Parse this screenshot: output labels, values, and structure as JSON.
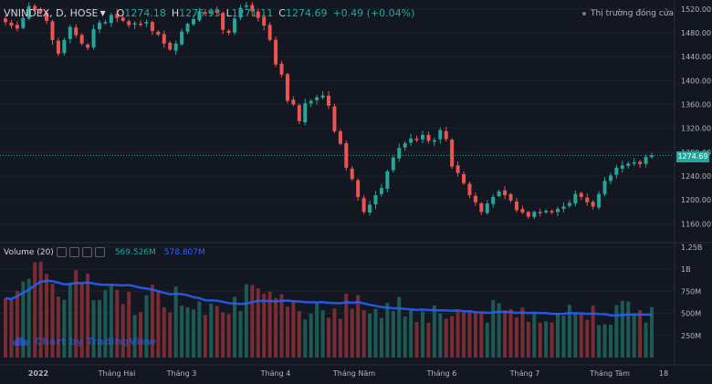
{
  "header": {
    "symbol": "VNINDEX, D, HOSE",
    "open_label": "O",
    "open": "1274.18",
    "high_label": "H",
    "high": "1275.93",
    "low_label": "L",
    "low": "1271.11",
    "close_label": "C",
    "close": "1274.69",
    "change": "+0.49 (+0.04%)"
  },
  "status": "Thị trường đóng cửa",
  "volume_header": {
    "label": "Volume (20)",
    "value1": "569.526M",
    "value2": "578.807M"
  },
  "watermark": "Chart by TradingView",
  "last_price_tag": "1274.69",
  "colors": {
    "up": "#26a69a",
    "down": "#ef5350",
    "ma": "#2962ff",
    "background": "#131722"
  },
  "chart_data": [
    {
      "type": "candlestick",
      "price_axis_ticks": [
        "1520.00",
        "1480.00",
        "1440.00",
        "1400.00",
        "1360.00",
        "1320.00",
        "1280.00",
        "1240.00",
        "1200.00",
        "1160.00"
      ],
      "ylim": [
        1130,
        1535
      ],
      "last_price": 1274.69,
      "x_ticks": [
        "2022",
        "Tháng Hai",
        "Tháng 3",
        "Tháng 4",
        "Tháng Năm",
        "Tháng 6",
        "Tháng 7",
        "Tháng Tám",
        "18"
      ],
      "series_close": [
        1498,
        1492,
        1487,
        1505,
        1525,
        1518,
        1515,
        1500,
        1468,
        1445,
        1468,
        1490,
        1476,
        1462,
        1455,
        1486,
        1497,
        1498,
        1510,
        1505,
        1500,
        1493,
        1496,
        1495,
        1498,
        1483,
        1477,
        1462,
        1452,
        1462,
        1482,
        1495,
        1503,
        1516,
        1513,
        1516,
        1514,
        1485,
        1480,
        1504,
        1522,
        1526,
        1516,
        1505,
        1492,
        1468,
        1427,
        1410,
        1366,
        1360,
        1332,
        1362,
        1366,
        1372,
        1375,
        1358,
        1315,
        1294,
        1254,
        1235,
        1205,
        1180,
        1192,
        1208,
        1220,
        1248,
        1271,
        1287,
        1295,
        1303,
        1302,
        1309,
        1299,
        1300,
        1317,
        1302,
        1256,
        1245,
        1228,
        1208,
        1196,
        1180,
        1194,
        1205,
        1214,
        1208,
        1199,
        1183,
        1179,
        1172,
        1180,
        1180,
        1182,
        1180,
        1185,
        1189,
        1195,
        1210,
        1205,
        1196,
        1189,
        1210,
        1232,
        1241,
        1254,
        1258,
        1261,
        1263,
        1260,
        1272,
        1274.69
      ]
    },
    {
      "type": "bar",
      "name": "Volume (20)",
      "y_ticks": [
        "1.25B",
        "1B",
        "750M",
        "500M",
        "250M"
      ],
      "ylim": [
        0,
        1300000000
      ],
      "last_volume": 569526000,
      "last_ma": 578807000
    }
  ]
}
